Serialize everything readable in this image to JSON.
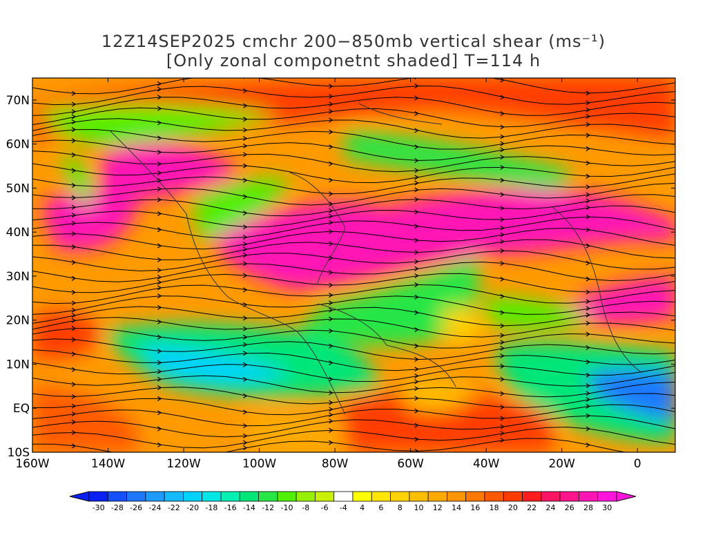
{
  "title": {
    "line1": "12Z14SEP2025 cmchr 200−850mb vertical shear (ms⁻¹)",
    "line2": "[Only zonal componetnt shaded] T=114 h"
  },
  "map": {
    "lon_range": [
      -160,
      10
    ],
    "lat_range": [
      -10,
      75
    ],
    "lon_ticks": [
      "160W",
      "140W",
      "120W",
      "100W",
      "80W",
      "60W",
      "40W",
      "20W",
      "0"
    ],
    "lat_ticks": [
      "10S",
      "EQ",
      "10N",
      "20N",
      "30N",
      "40N",
      "50N",
      "60N",
      "70N"
    ],
    "shading_variable": "zonal shear",
    "vector_field": "streamlines"
  },
  "colorbar": {
    "labels": [
      "-30",
      "-28",
      "-26",
      "-24",
      "-22",
      "-20",
      "-18",
      "-16",
      "-14",
      "-12",
      "-10",
      "-8",
      "-6",
      "-4",
      "4",
      "6",
      "8",
      "10",
      "12",
      "14",
      "16",
      "18",
      "20",
      "22",
      "24",
      "26",
      "28",
      "30"
    ],
    "colors": [
      "#0a20f0",
      "#1450ff",
      "#1e78ff",
      "#1e9bff",
      "#14b9ff",
      "#00d2ff",
      "#00e6e6",
      "#00f0b4",
      "#00e678",
      "#28e646",
      "#50f000",
      "#96f000",
      "#c8f000",
      "#ffffff",
      "#ffff00",
      "#ffe600",
      "#ffd200",
      "#ffbe00",
      "#ffaa00",
      "#ff9600",
      "#ff7800",
      "#ff5a00",
      "#ff3c00",
      "#ff1e1e",
      "#ff1464",
      "#ff148c",
      "#ff14b4",
      "#ff14dc"
    ]
  }
}
